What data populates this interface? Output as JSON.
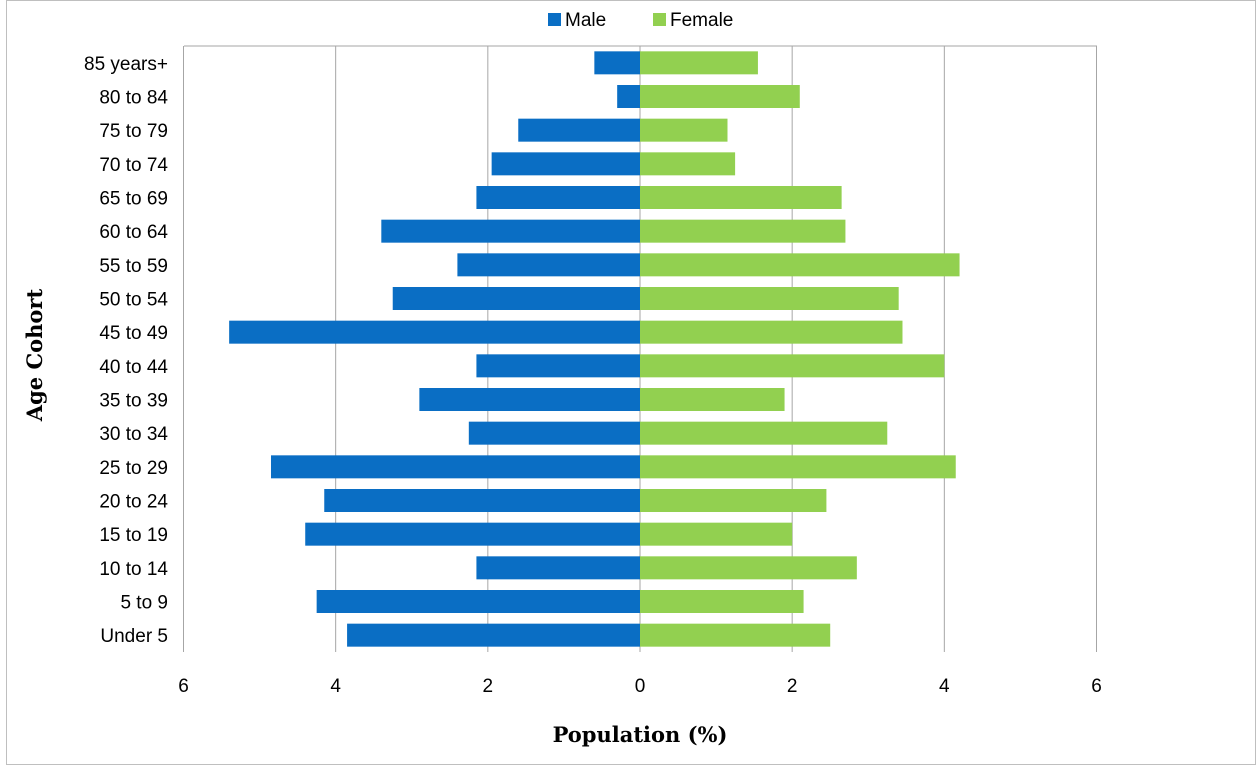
{
  "chart_data": {
    "type": "bar",
    "orientation": "horizontal",
    "layout": "population-pyramid",
    "categories": [
      "85 years+",
      "80 to 84",
      "75 to 79",
      "70 to 74",
      "65 to 69",
      "60 to 64",
      "55 to 59",
      "50 to 54",
      "45 to 49",
      "40 to 44",
      "35 to 39",
      "30 to 34",
      "25 to 29",
      "20 to 24",
      "15 to 19",
      "10 to 14",
      "5 to 9",
      "Under 5"
    ],
    "series": [
      {
        "name": "Male",
        "color": "#0a6ec4",
        "direction": "left",
        "values": [
          0.6,
          0.3,
          1.6,
          1.95,
          2.15,
          3.4,
          2.4,
          3.25,
          5.4,
          2.15,
          2.9,
          2.25,
          4.85,
          4.15,
          4.4,
          2.15,
          4.25,
          3.85
        ]
      },
      {
        "name": "Female",
        "color": "#92d050",
        "direction": "right",
        "values": [
          1.55,
          2.1,
          1.15,
          1.25,
          2.65,
          2.7,
          4.2,
          3.4,
          3.45,
          4.0,
          1.9,
          3.25,
          4.15,
          2.45,
          2.0,
          2.85,
          2.15,
          2.5
        ]
      }
    ],
    "x_ticks": [
      "6",
      "4",
      "2",
      "0",
      "2",
      "4",
      "6"
    ],
    "xlim": [
      -6,
      6
    ],
    "xlabel": "Population (%)",
    "ylabel": "Age Cohort",
    "grid": "vertical",
    "legend": "top-center"
  }
}
